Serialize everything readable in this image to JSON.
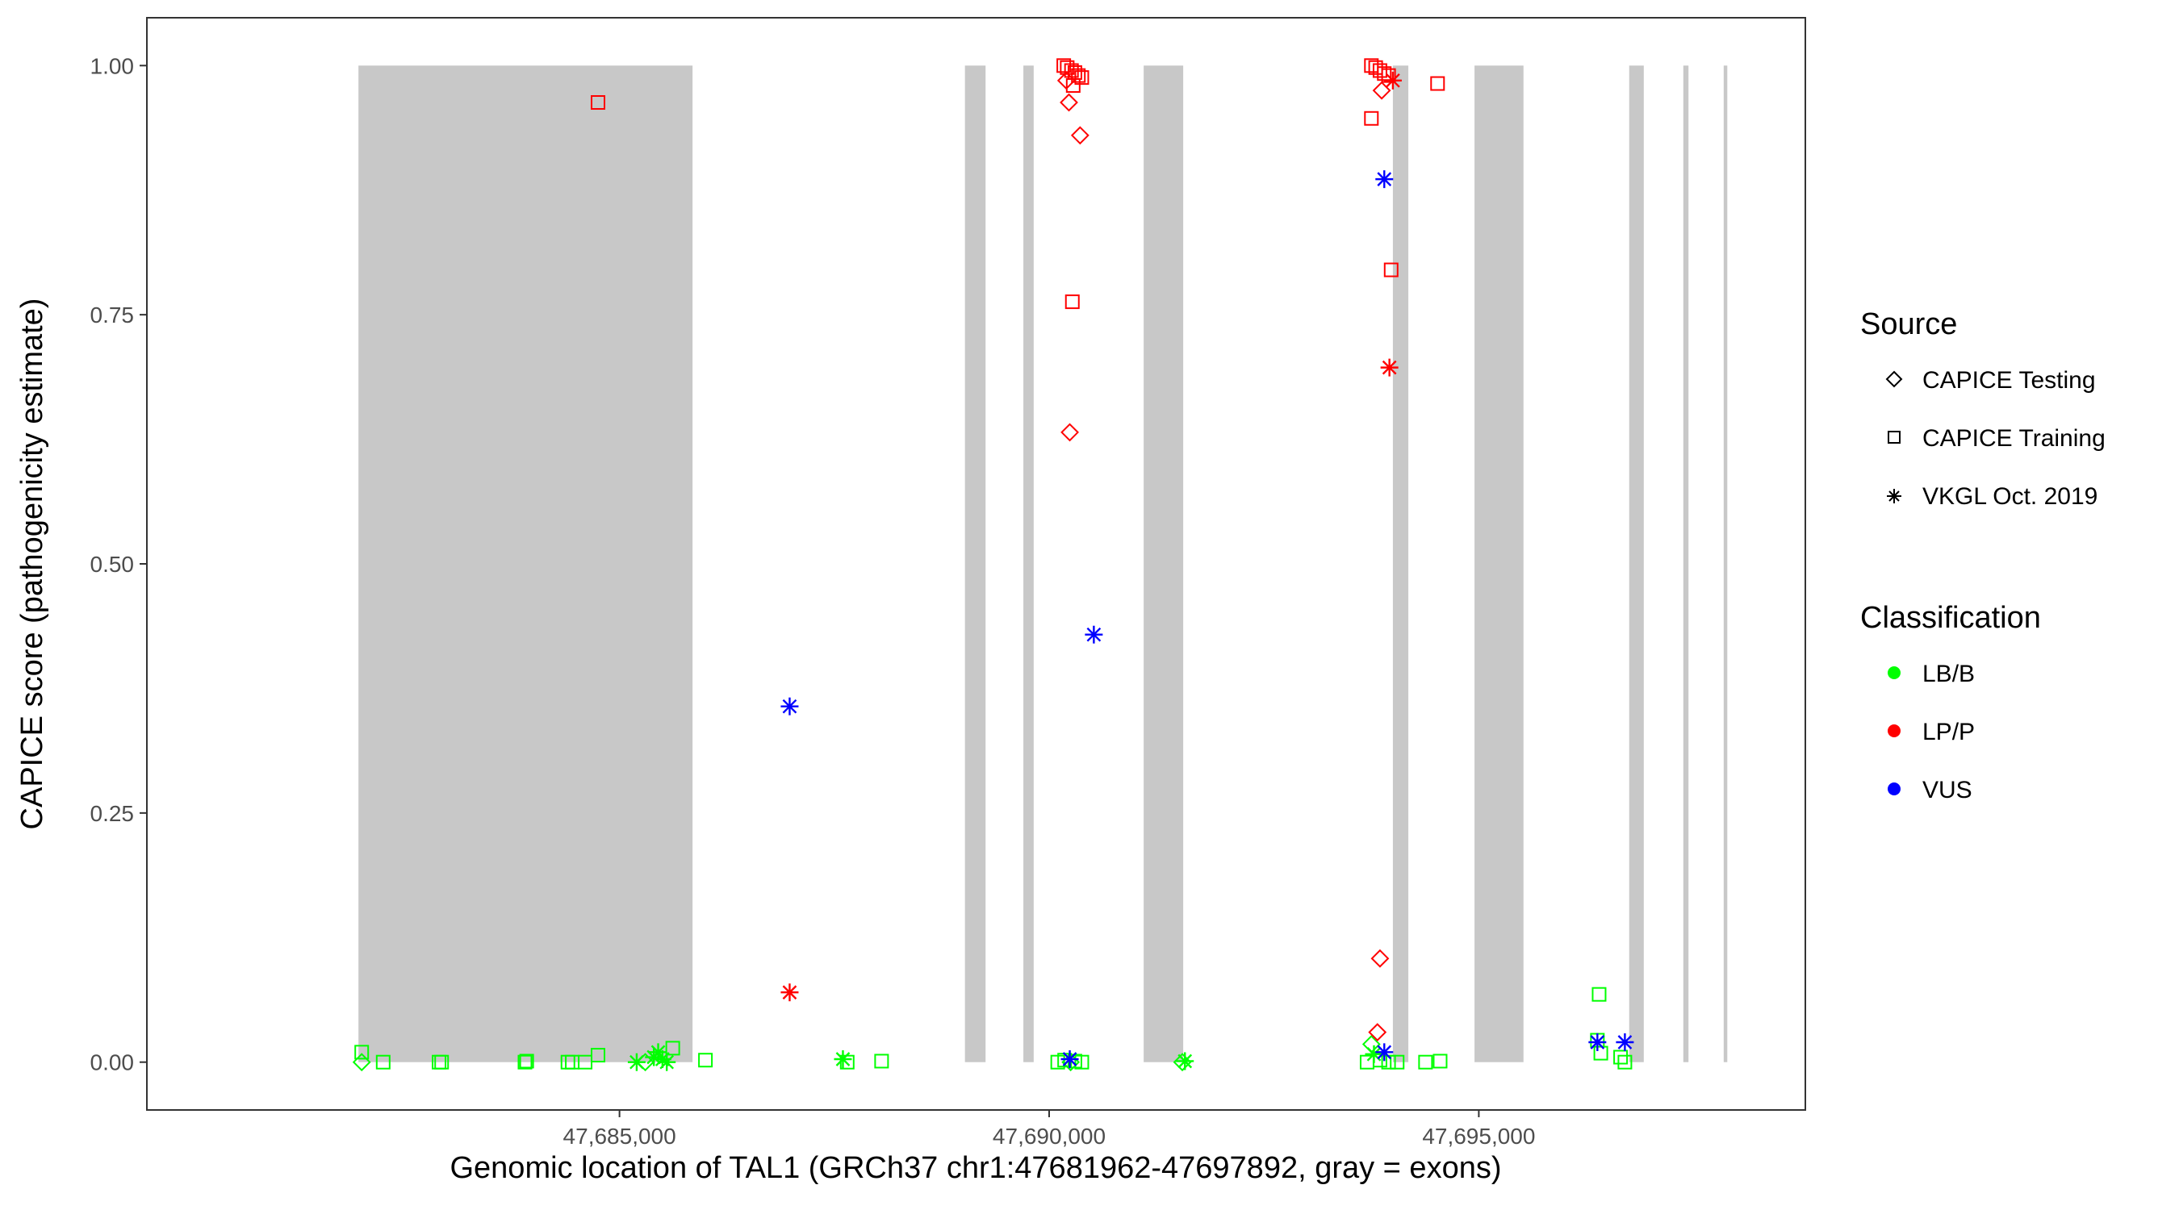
{
  "chart_data": {
    "type": "scatter",
    "xlabel": "Genomic location of TAL1 (GRCh37 chr1:47681962-47697892, gray = exons)",
    "ylabel": "CAPICE score (pathogenicity estimate)",
    "xlim": [
      47679500,
      47698800
    ],
    "ylim": [
      -0.048,
      1.048
    ],
    "x_ticks": [
      47685000,
      47690000,
      47695000
    ],
    "x_tick_labels": [
      "47,685,000",
      "47,690,000",
      "47,695,000"
    ],
    "y_ticks": [
      0,
      0.25,
      0.5,
      0.75,
      1.0
    ],
    "y_tick_labels": [
      "0.00",
      "0.25",
      "0.50",
      "0.75",
      "1.00"
    ],
    "grid": false,
    "exon_color": "#c8c8c8",
    "exons": [
      [
        47681962,
        47685850
      ],
      [
        47689020,
        47689260
      ],
      [
        47689700,
        47689820
      ],
      [
        47691100,
        47691560
      ],
      [
        47694000,
        47694180
      ],
      [
        47694950,
        47695520
      ],
      [
        47696750,
        47696920
      ],
      [
        47697380,
        47697440
      ],
      [
        47697850,
        47697892
      ]
    ],
    "legend_source": {
      "title": "Source",
      "items": [
        {
          "label": "CAPICE Testing",
          "shape": "diamond"
        },
        {
          "label": "CAPICE Training",
          "shape": "square"
        },
        {
          "label": "VKGL Oct. 2019",
          "shape": "asterisk"
        }
      ]
    },
    "legend_classification": {
      "title": "Classification",
      "items": [
        {
          "label": "LB/B",
          "color": "#00ff00"
        },
        {
          "label": "LP/P",
          "color": "#ff0000"
        },
        {
          "label": "VUS",
          "color": "#0000ff"
        }
      ]
    },
    "legend_position": "right",
    "points": [
      {
        "x": 47682000,
        "y": 0.01,
        "shape": "square",
        "cls": "LB/B"
      },
      {
        "x": 47682000,
        "y": 0.0,
        "shape": "diamond",
        "cls": "LB/B"
      },
      {
        "x": 47682250,
        "y": 0.0,
        "shape": "square",
        "cls": "LB/B"
      },
      {
        "x": 47682900,
        "y": 0.0,
        "shape": "square",
        "cls": "LB/B"
      },
      {
        "x": 47682930,
        "y": 0.0,
        "shape": "square",
        "cls": "LB/B"
      },
      {
        "x": 47683900,
        "y": 0.0,
        "shape": "square",
        "cls": "LB/B"
      },
      {
        "x": 47683920,
        "y": 0.001,
        "shape": "square",
        "cls": "LB/B"
      },
      {
        "x": 47684400,
        "y": 0.0,
        "shape": "square",
        "cls": "LB/B"
      },
      {
        "x": 47684450,
        "y": 0.0,
        "shape": "square",
        "cls": "LB/B"
      },
      {
        "x": 47684600,
        "y": 0.0,
        "shape": "square",
        "cls": "LB/B"
      },
      {
        "x": 47684750,
        "y": 0.007,
        "shape": "square",
        "cls": "LB/B"
      },
      {
        "x": 47685200,
        "y": 0.0,
        "shape": "asterisk",
        "cls": "LB/B"
      },
      {
        "x": 47685300,
        "y": 0.0,
        "shape": "diamond",
        "cls": "LB/B"
      },
      {
        "x": 47685400,
        "y": 0.005,
        "shape": "asterisk",
        "cls": "LB/B"
      },
      {
        "x": 47685450,
        "y": 0.01,
        "shape": "asterisk",
        "cls": "LB/B"
      },
      {
        "x": 47685500,
        "y": 0.003,
        "shape": "asterisk",
        "cls": "LB/B"
      },
      {
        "x": 47685550,
        "y": 0.0,
        "shape": "asterisk",
        "cls": "LB/B"
      },
      {
        "x": 47685620,
        "y": 0.014,
        "shape": "square",
        "cls": "LB/B"
      },
      {
        "x": 47686000,
        "y": 0.002,
        "shape": "square",
        "cls": "LB/B"
      },
      {
        "x": 47687600,
        "y": 0.003,
        "shape": "asterisk",
        "cls": "LB/B"
      },
      {
        "x": 47687650,
        "y": 0.0,
        "shape": "square",
        "cls": "LB/B"
      },
      {
        "x": 47688050,
        "y": 0.001,
        "shape": "square",
        "cls": "LB/B"
      },
      {
        "x": 47690100,
        "y": 0.0,
        "shape": "square",
        "cls": "LB/B"
      },
      {
        "x": 47690180,
        "y": 0.002,
        "shape": "square",
        "cls": "LB/B"
      },
      {
        "x": 47690250,
        "y": 0.0,
        "shape": "diamond",
        "cls": "LB/B"
      },
      {
        "x": 47690300,
        "y": 0.001,
        "shape": "square",
        "cls": "LB/B"
      },
      {
        "x": 47690380,
        "y": 0.0,
        "shape": "square",
        "cls": "LB/B"
      },
      {
        "x": 47691550,
        "y": 0.0,
        "shape": "diamond",
        "cls": "LB/B"
      },
      {
        "x": 47691580,
        "y": 0.001,
        "shape": "asterisk",
        "cls": "LB/B"
      },
      {
        "x": 47693700,
        "y": 0.0,
        "shape": "square",
        "cls": "LB/B"
      },
      {
        "x": 47693750,
        "y": 0.018,
        "shape": "diamond",
        "cls": "LB/B"
      },
      {
        "x": 47693780,
        "y": 0.008,
        "shape": "asterisk",
        "cls": "LB/B"
      },
      {
        "x": 47693850,
        "y": 0.002,
        "shape": "square",
        "cls": "LB/B"
      },
      {
        "x": 47693950,
        "y": 0.0,
        "shape": "square",
        "cls": "LB/B"
      },
      {
        "x": 47694050,
        "y": 0.0,
        "shape": "square",
        "cls": "LB/B"
      },
      {
        "x": 47694380,
        "y": 0.0,
        "shape": "square",
        "cls": "LB/B"
      },
      {
        "x": 47694550,
        "y": 0.001,
        "shape": "square",
        "cls": "LB/B"
      },
      {
        "x": 47696400,
        "y": 0.068,
        "shape": "square",
        "cls": "LB/B"
      },
      {
        "x": 47696380,
        "y": 0.022,
        "shape": "square",
        "cls": "LB/B"
      },
      {
        "x": 47696420,
        "y": 0.009,
        "shape": "square",
        "cls": "LB/B"
      },
      {
        "x": 47696650,
        "y": 0.005,
        "shape": "square",
        "cls": "LB/B"
      },
      {
        "x": 47696700,
        "y": 0.0,
        "shape": "square",
        "cls": "LB/B"
      },
      {
        "x": 47684750,
        "y": 0.963,
        "shape": "square",
        "cls": "LP/P"
      },
      {
        "x": 47686980,
        "y": 0.07,
        "shape": "asterisk",
        "cls": "LP/P"
      },
      {
        "x": 47690170,
        "y": 1.0,
        "shape": "square",
        "cls": "LP/P"
      },
      {
        "x": 47690210,
        "y": 0.998,
        "shape": "square",
        "cls": "LP/P"
      },
      {
        "x": 47690260,
        "y": 0.995,
        "shape": "square",
        "cls": "LP/P"
      },
      {
        "x": 47690300,
        "y": 0.993,
        "shape": "square",
        "cls": "LP/P"
      },
      {
        "x": 47690340,
        "y": 0.99,
        "shape": "square",
        "cls": "LP/P"
      },
      {
        "x": 47690380,
        "y": 0.988,
        "shape": "square",
        "cls": "LP/P"
      },
      {
        "x": 47690200,
        "y": 0.985,
        "shape": "diamond",
        "cls": "LP/P"
      },
      {
        "x": 47690280,
        "y": 0.98,
        "shape": "square",
        "cls": "LP/P"
      },
      {
        "x": 47690230,
        "y": 0.963,
        "shape": "diamond",
        "cls": "LP/P"
      },
      {
        "x": 47690360,
        "y": 0.93,
        "shape": "diamond",
        "cls": "LP/P"
      },
      {
        "x": 47690270,
        "y": 0.763,
        "shape": "square",
        "cls": "LP/P"
      },
      {
        "x": 47690240,
        "y": 0.632,
        "shape": "diamond",
        "cls": "LP/P"
      },
      {
        "x": 47693750,
        "y": 1.0,
        "shape": "square",
        "cls": "LP/P"
      },
      {
        "x": 47693800,
        "y": 0.998,
        "shape": "square",
        "cls": "LP/P"
      },
      {
        "x": 47693850,
        "y": 0.995,
        "shape": "square",
        "cls": "LP/P"
      },
      {
        "x": 47693900,
        "y": 0.992,
        "shape": "square",
        "cls": "LP/P"
      },
      {
        "x": 47693950,
        "y": 0.99,
        "shape": "square",
        "cls": "LP/P"
      },
      {
        "x": 47694000,
        "y": 0.985,
        "shape": "asterisk",
        "cls": "LP/P"
      },
      {
        "x": 47693870,
        "y": 0.975,
        "shape": "diamond",
        "cls": "LP/P"
      },
      {
        "x": 47694520,
        "y": 0.982,
        "shape": "square",
        "cls": "LP/P"
      },
      {
        "x": 47693750,
        "y": 0.947,
        "shape": "square",
        "cls": "LP/P"
      },
      {
        "x": 47693980,
        "y": 0.795,
        "shape": "square",
        "cls": "LP/P"
      },
      {
        "x": 47693960,
        "y": 0.697,
        "shape": "asterisk",
        "cls": "LP/P"
      },
      {
        "x": 47693850,
        "y": 0.104,
        "shape": "diamond",
        "cls": "LP/P"
      },
      {
        "x": 47693820,
        "y": 0.03,
        "shape": "diamond",
        "cls": "LP/P"
      },
      {
        "x": 47686980,
        "y": 0.357,
        "shape": "asterisk",
        "cls": "VUS"
      },
      {
        "x": 47690520,
        "y": 0.429,
        "shape": "asterisk",
        "cls": "VUS"
      },
      {
        "x": 47690240,
        "y": 0.003,
        "shape": "asterisk",
        "cls": "VUS"
      },
      {
        "x": 47693900,
        "y": 0.886,
        "shape": "asterisk",
        "cls": "VUS"
      },
      {
        "x": 47693900,
        "y": 0.01,
        "shape": "asterisk",
        "cls": "VUS"
      },
      {
        "x": 47696380,
        "y": 0.02,
        "shape": "asterisk",
        "cls": "VUS"
      },
      {
        "x": 47696700,
        "y": 0.02,
        "shape": "asterisk",
        "cls": "VUS"
      }
    ]
  }
}
